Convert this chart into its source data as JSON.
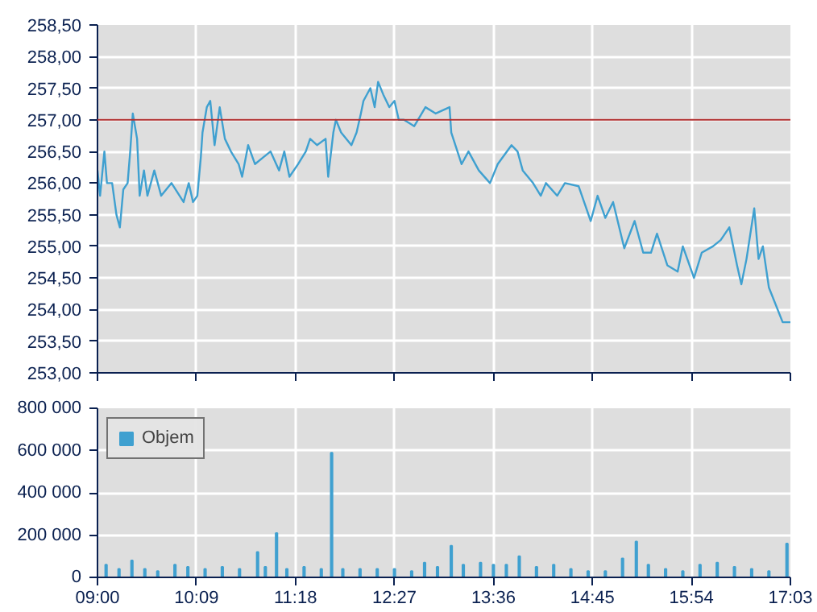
{
  "chart_data": [
    {
      "type": "line",
      "xlim": [
        9,
        17.05
      ],
      "xticks": [
        {
          "value": 9,
          "label": null
        },
        {
          "value": 10.15,
          "label": null
        },
        {
          "value": 11.3,
          "label": null
        },
        {
          "value": 12.45,
          "label": null
        },
        {
          "value": 13.6,
          "label": null
        },
        {
          "value": 14.75,
          "label": null
        },
        {
          "value": 15.9,
          "label": null
        },
        {
          "value": 17.05,
          "label": null
        }
      ],
      "ylim": [
        253,
        258.5
      ],
      "yticks": [
        {
          "value": 253,
          "label": "253,00"
        },
        {
          "value": 253.5,
          "label": "253,50"
        },
        {
          "value": 254,
          "label": "254,00"
        },
        {
          "value": 254.5,
          "label": "254,50"
        },
        {
          "value": 255,
          "label": "255,00"
        },
        {
          "value": 255.5,
          "label": "255,50"
        },
        {
          "value": 256,
          "label": "256,00"
        },
        {
          "value": 256.5,
          "label": "256,50"
        },
        {
          "value": 257,
          "label": "257,00"
        },
        {
          "value": 257.5,
          "label": "257,50"
        },
        {
          "value": 258,
          "label": "258,00"
        },
        {
          "value": 258.5,
          "label": "258,50"
        }
      ],
      "grid": true,
      "tick_labels": "y",
      "ref_lines": [
        {
          "axis": "y",
          "value": 257,
          "color": "#b03030"
        }
      ],
      "x": [
        9.0,
        9.03,
        9.08,
        9.11,
        9.17,
        9.22,
        9.26,
        9.3,
        9.35,
        9.38,
        9.41,
        9.46,
        9.49,
        9.54,
        9.58,
        9.66,
        9.74,
        9.86,
        10.0,
        10.06,
        10.11,
        10.16,
        10.2,
        10.22,
        10.27,
        10.31,
        10.36,
        10.42,
        10.48,
        10.55,
        10.64,
        10.68,
        10.75,
        10.83,
        10.92,
        11.01,
        11.11,
        11.17,
        11.23,
        11.33,
        11.42,
        11.47,
        11.55,
        11.65,
        11.68,
        11.74,
        11.77,
        11.83,
        11.95,
        12.01,
        12.06,
        12.09,
        12.17,
        12.22,
        12.26,
        12.32,
        12.39,
        12.45,
        12.5,
        12.56,
        12.68,
        12.81,
        12.93,
        13.09,
        13.11,
        13.23,
        13.31,
        13.43,
        13.56,
        13.65,
        13.81,
        13.88,
        13.94,
        14.06,
        14.15,
        14.21,
        14.34,
        14.43,
        14.59,
        14.73,
        14.81,
        14.9,
        14.99,
        15.12,
        15.24,
        15.34,
        15.43,
        15.5,
        15.62,
        15.74,
        15.8,
        15.93,
        16.02,
        16.15,
        16.24,
        16.34,
        16.43,
        16.48,
        16.54,
        16.63,
        16.68,
        16.73,
        16.8,
        16.96,
        17.05
      ],
      "series": [
        {
          "color": "#3fa0d0",
          "values": [
            256.2,
            255.8,
            256.5,
            256.0,
            256.0,
            255.5,
            255.3,
            255.9,
            256.0,
            256.5,
            257.1,
            256.7,
            255.8,
            256.2,
            255.8,
            256.2,
            255.8,
            256.0,
            255.7,
            256.0,
            255.7,
            255.8,
            256.4,
            256.8,
            257.2,
            257.3,
            256.6,
            257.2,
            256.7,
            256.5,
            256.3,
            256.1,
            256.6,
            256.3,
            256.4,
            256.5,
            256.2,
            256.5,
            256.1,
            256.3,
            256.5,
            256.7,
            256.6,
            256.7,
            256.1,
            256.8,
            257.0,
            256.8,
            256.6,
            256.8,
            257.1,
            257.3,
            257.5,
            257.2,
            257.6,
            257.4,
            257.2,
            257.3,
            257.0,
            257.0,
            256.9,
            257.2,
            257.1,
            257.2,
            256.8,
            256.3,
            256.5,
            256.2,
            256.0,
            256.3,
            256.6,
            256.5,
            256.2,
            256.0,
            255.8,
            256.0,
            255.8,
            256.0,
            255.95,
            255.4,
            255.8,
            255.45,
            255.7,
            254.97,
            255.4,
            254.9,
            254.9,
            255.2,
            254.7,
            254.6,
            255.0,
            254.5,
            254.9,
            255.0,
            255.1,
            255.3,
            254.7,
            254.4,
            254.8,
            255.6,
            254.8,
            255.0,
            254.35,
            253.8,
            253.8
          ]
        }
      ]
    },
    {
      "type": "bar",
      "xlim": [
        9,
        17.05
      ],
      "xticks": [
        {
          "value": 9,
          "label": "09:00"
        },
        {
          "value": 10.15,
          "label": "10:09"
        },
        {
          "value": 11.3,
          "label": "11:18"
        },
        {
          "value": 12.45,
          "label": "12:27"
        },
        {
          "value": 13.6,
          "label": "13:36"
        },
        {
          "value": 14.75,
          "label": "14:45"
        },
        {
          "value": 15.9,
          "label": "15:54"
        },
        {
          "value": 17.05,
          "label": "17:03"
        }
      ],
      "ylim": [
        0,
        800000
      ],
      "yticks": [
        0,
        {
          "value": 200000,
          "label": "200 000"
        },
        {
          "value": 400000,
          "label": "400 000"
        },
        {
          "value": 600000,
          "label": "600 000"
        },
        {
          "value": 800000,
          "label": "800 000"
        }
      ],
      "grid": true,
      "legend": "top left",
      "x": [
        9.1,
        9.25,
        9.4,
        9.55,
        9.7,
        9.9,
        10.05,
        10.25,
        10.45,
        10.65,
        10.86,
        10.95,
        11.08,
        11.2,
        11.4,
        11.6,
        11.72,
        11.85,
        12.05,
        12.25,
        12.45,
        12.65,
        12.8,
        12.95,
        13.11,
        13.25,
        13.45,
        13.6,
        13.75,
        13.9,
        14.1,
        14.3,
        14.5,
        14.7,
        14.9,
        15.1,
        15.26,
        15.4,
        15.6,
        15.8,
        16.0,
        16.2,
        16.4,
        16.6,
        16.8,
        17.01
      ],
      "series": [
        {
          "name": "Objem",
          "color": "#3fa0d0",
          "values": [
            60000,
            40000,
            80000,
            40000,
            30000,
            60000,
            50000,
            40000,
            50000,
            40000,
            120000,
            50000,
            210000,
            40000,
            50000,
            40000,
            590000,
            40000,
            40000,
            40000,
            40000,
            30000,
            70000,
            50000,
            150000,
            60000,
            70000,
            60000,
            60000,
            100000,
            50000,
            60000,
            40000,
            30000,
            30000,
            90000,
            170000,
            60000,
            40000,
            30000,
            60000,
            70000,
            50000,
            40000,
            30000,
            160000
          ]
        }
      ]
    }
  ]
}
